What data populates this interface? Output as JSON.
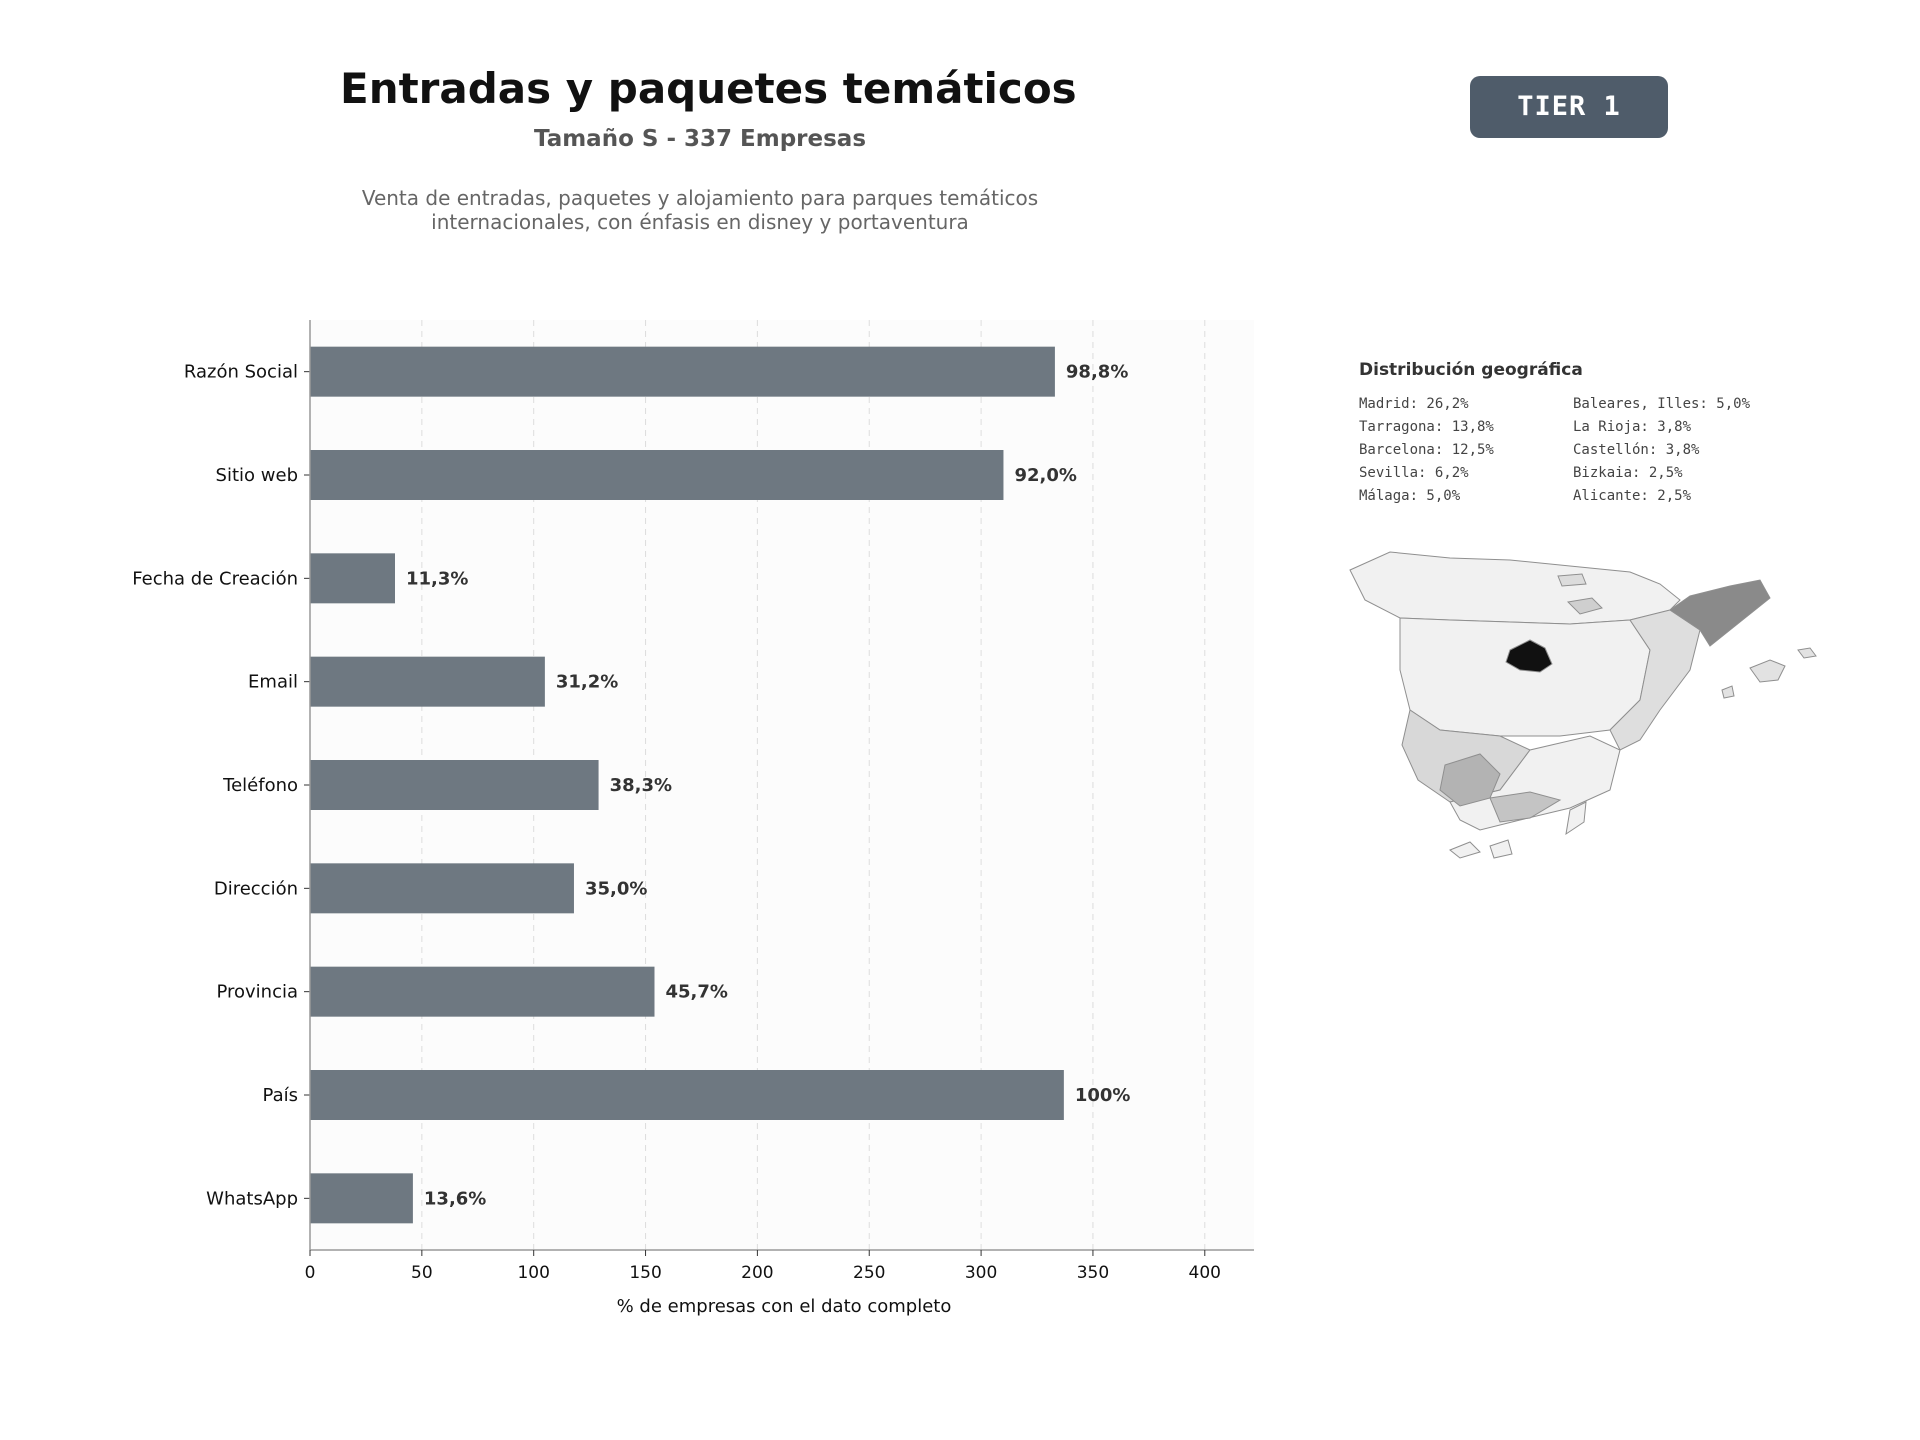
{
  "header": {
    "title": "Entradas y paquetes temáticos",
    "subtitle": "Tamaño S - 337 Empresas",
    "description": "Venta de entradas, paquetes y alojamiento para parques temáticos internacionales, con énfasis en disney y portaventura",
    "tier": "TIER 1"
  },
  "colors": {
    "bar": "#6e7881",
    "tier_bg": "#4f5c6a",
    "plot_bg": "#fcfcfc",
    "map_base": "#eeeeee",
    "map_dark": "#111111"
  },
  "chart_data": {
    "type": "bar",
    "orientation": "horizontal",
    "categories": [
      "Razón Social",
      "Sitio web",
      "Fecha de Creación",
      "Email",
      "Teléfono",
      "Dirección",
      "Provincia",
      "País",
      "WhatsApp"
    ],
    "values": [
      333,
      310,
      38,
      105,
      129,
      118,
      154,
      337,
      46
    ],
    "labels": [
      "98,8%",
      "92,0%",
      "11,3%",
      "31,2%",
      "38,3%",
      "35,0%",
      "45,7%",
      "100%",
      "13,6%"
    ],
    "xlabel": "% de empresas con el dato completo",
    "ylabel": "",
    "xlim": [
      0,
      422
    ],
    "xticks": [
      0,
      50,
      100,
      150,
      200,
      250,
      300,
      350,
      400
    ],
    "grid": "vertical dashed"
  },
  "geo": {
    "title": "Distribución geográfica",
    "items": [
      "Madrid: 26,2%",
      "Baleares, Illes: 5,0%",
      "Tarragona: 13,8%",
      "La Rioja: 3,8%",
      "Barcelona: 12,5%",
      "Castellón: 3,8%",
      "Sevilla: 6,2%",
      "Bizkaia: 2,5%",
      "Málaga: 5,0%",
      "Alicante: 2,5%"
    ]
  }
}
